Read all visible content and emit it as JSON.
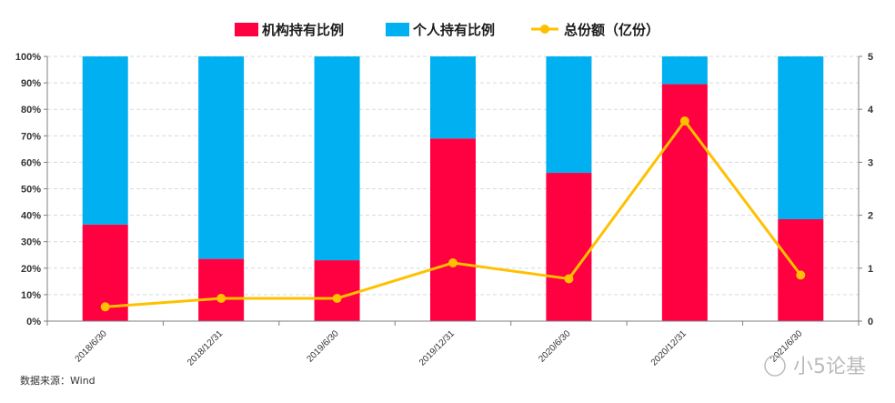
{
  "chart_data": {
    "type": "bar",
    "stacked": true,
    "categories": [
      "2018/6/30",
      "2018/12/31",
      "2019/6/30",
      "2019/12/31",
      "2020/6/30",
      "2020/12/31",
      "2021/6/30"
    ],
    "series": [
      {
        "name": "机构持有比例",
        "kind": "bar",
        "axis": "left",
        "values": [
          36.5,
          23.5,
          23.0,
          69.0,
          56.0,
          89.5,
          38.5
        ]
      },
      {
        "name": "个人持有比例",
        "kind": "bar",
        "axis": "left",
        "values": [
          63.5,
          76.5,
          77.0,
          31.0,
          44.0,
          10.5,
          61.5
        ]
      },
      {
        "name": "总份额（亿份）",
        "kind": "line",
        "axis": "right",
        "values": [
          0.27,
          0.43,
          0.43,
          1.1,
          0.8,
          3.78,
          0.87
        ]
      }
    ],
    "y_left": {
      "ticks": [
        "0%",
        "10%",
        "20%",
        "30%",
        "40%",
        "50%",
        "60%",
        "70%",
        "80%",
        "90%",
        "100%"
      ],
      "ylim": [
        0,
        100
      ]
    },
    "y_right": {
      "ticks": [
        "0",
        "1",
        "2",
        "3",
        "4",
        "5"
      ],
      "ylim": [
        0,
        5
      ]
    },
    "grid": true,
    "legend_position": "top-center",
    "colors": {
      "institution": "#ff0040",
      "individual": "#00b0f0",
      "total": "#ffc000"
    }
  },
  "source_note": "数据来源：Wind",
  "watermark": "小5论基"
}
